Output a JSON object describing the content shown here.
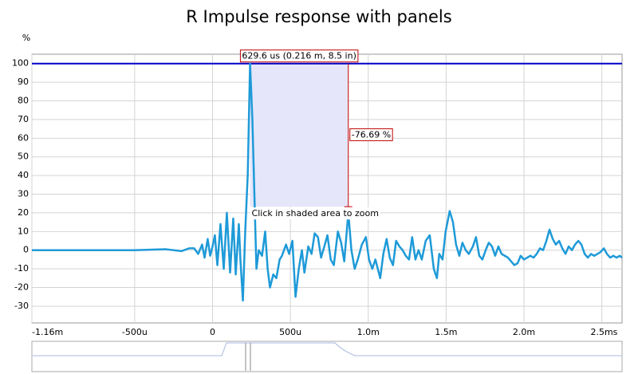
{
  "chart_data": {
    "type": "line",
    "title": "R Impulse response with panels",
    "y_label": "%",
    "x_unit": "s",
    "xlim": [
      -1.16,
      2.63
    ],
    "ylim": [
      -39,
      105
    ],
    "xticks": [
      {
        "value": -1.16,
        "label": "-1.16m"
      },
      {
        "value": -0.5,
        "label": "-500u"
      },
      0,
      {
        "value": 0.5,
        "label": "500u"
      },
      {
        "value": 1.0,
        "label": "1.0m"
      },
      {
        "value": 1.5,
        "label": "1.5m"
      },
      {
        "value": 2.0,
        "label": "2.0m"
      },
      {
        "value": 2.5,
        "label": "2.5m"
      }
    ],
    "yticks": [
      -30,
      -20,
      -10,
      0,
      10,
      20,
      30,
      40,
      50,
      60,
      70,
      80,
      90,
      100
    ],
    "grid": true,
    "reference_line": {
      "value": 100,
      "color": "#0000c8"
    },
    "selection": {
      "x": [
        0.241,
        0.872
      ],
      "y": [
        23.31,
        100
      ],
      "color": "#c00000"
    },
    "annotations": {
      "selection_label": "629.6 us (0.216 m, 8.5 in)",
      "delta_label": "-76.69 %",
      "hint": "Click in shaded area to zoom"
    },
    "series": [
      {
        "name": "R",
        "color": "#1e9ad8",
        "x": [
          -1.16,
          -0.8,
          -0.5,
          -0.3,
          -0.2,
          -0.15,
          -0.118,
          -0.092,
          -0.067,
          -0.051,
          -0.031,
          -0.015,
          0,
          0.015,
          0.031,
          0.051,
          0.072,
          0.092,
          0.113,
          0.133,
          0.149,
          0.169,
          0.179,
          0.195,
          0.21,
          0.226,
          0.241,
          0.256,
          0.272,
          0.282,
          0.297,
          0.318,
          0.338,
          0.354,
          0.369,
          0.39,
          0.41,
          0.431,
          0.446,
          0.472,
          0.492,
          0.513,
          0.533,
          0.554,
          0.574,
          0.59,
          0.615,
          0.636,
          0.656,
          0.677,
          0.697,
          0.718,
          0.738,
          0.759,
          0.779,
          0.805,
          0.826,
          0.846,
          0.872,
          0.892,
          0.913,
          0.933,
          0.959,
          0.985,
          1.005,
          1.026,
          1.046,
          1.077,
          1.097,
          1.118,
          1.138,
          1.159,
          1.179,
          1.2,
          1.221,
          1.241,
          1.262,
          1.282,
          1.303,
          1.323,
          1.344,
          1.369,
          1.395,
          1.421,
          1.441,
          1.456,
          1.477,
          1.497,
          1.523,
          1.544,
          1.564,
          1.585,
          1.605,
          1.626,
          1.646,
          1.672,
          1.692,
          1.713,
          1.733,
          1.754,
          1.774,
          1.795,
          1.815,
          1.836,
          1.856,
          1.877,
          1.897,
          1.918,
          1.938,
          1.959,
          1.979,
          2.0,
          2.021,
          2.041,
          2.062,
          2.082,
          2.103,
          2.123,
          2.144,
          2.164,
          2.185,
          2.205,
          2.226,
          2.246,
          2.267,
          2.287,
          2.308,
          2.328,
          2.349,
          2.369,
          2.39,
          2.41,
          2.431,
          2.451,
          2.472,
          2.492,
          2.513,
          2.533,
          2.554,
          2.574,
          2.595,
          2.615,
          2.63
        ],
        "values": [
          0,
          0,
          0,
          0.5,
          -0.5,
          1,
          1,
          -2,
          3,
          -4,
          6,
          -3,
          2,
          8,
          -8,
          14,
          -10,
          20,
          -12,
          17,
          -13,
          14,
          -5,
          -27,
          10,
          40,
          100,
          70,
          20,
          -10,
          0,
          -3,
          10,
          -10,
          -20,
          -13,
          -15,
          -5,
          -3,
          3,
          -2,
          5,
          -25,
          -10,
          0,
          -12,
          2,
          -2,
          9,
          7,
          -4,
          2,
          8,
          -5,
          -8,
          10,
          4,
          -6,
          20,
          0,
          -10,
          -5,
          3,
          7,
          -5,
          -10,
          -5,
          -15,
          -2,
          6,
          -4,
          -8,
          5,
          2,
          0,
          -3,
          -5,
          7,
          -5,
          0,
          -5,
          5,
          8,
          -10,
          -15,
          -2,
          -5,
          10,
          21,
          15,
          3,
          -3,
          4,
          0,
          -2,
          2,
          7,
          -3,
          -5,
          0,
          4,
          2,
          -3,
          2,
          -2,
          -3,
          -4,
          -6,
          -8,
          -7,
          -3,
          -5,
          -4,
          -3,
          -4,
          -2,
          1,
          0,
          5,
          11,
          6,
          3,
          5,
          1,
          -2,
          2,
          0,
          3,
          5,
          3,
          -2,
          -4,
          -2,
          -3,
          -2,
          -1,
          1,
          -2,
          -4,
          -3,
          -4,
          -3,
          -4
        ]
      }
    ]
  }
}
